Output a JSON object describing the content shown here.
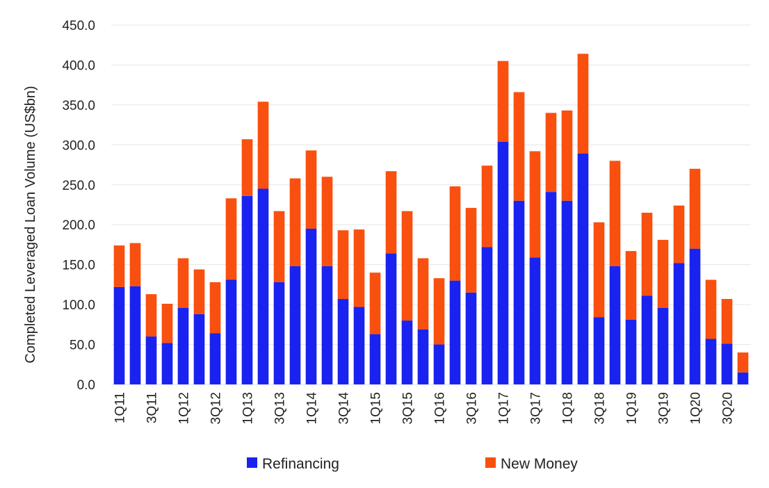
{
  "chart_data": {
    "type": "bar",
    "stacked": true,
    "ylabel": "Completed Leveraged Loan Volume (US$bn)",
    "ylim": [
      0,
      450
    ],
    "yticks": [
      "0.0",
      "50.0",
      "100.0",
      "150.0",
      "200.0",
      "250.0",
      "300.0",
      "350.0",
      "400.0",
      "450.0"
    ],
    "grid": true,
    "legend_position": "bottom",
    "categories": [
      "1Q11",
      "2Q11",
      "3Q11",
      "4Q11",
      "1Q12",
      "2Q12",
      "3Q12",
      "4Q12",
      "1Q13",
      "2Q13",
      "3Q13",
      "4Q13",
      "1Q14",
      "2Q14",
      "3Q14",
      "4Q14",
      "1Q15",
      "2Q15",
      "3Q15",
      "4Q15",
      "1Q16",
      "2Q16",
      "3Q16",
      "4Q16",
      "1Q17",
      "2Q17",
      "3Q17",
      "4Q17",
      "1Q18",
      "2Q18",
      "3Q18",
      "4Q18",
      "1Q19",
      "2Q19",
      "3Q19",
      "4Q19",
      "1Q20",
      "2Q20",
      "3Q20",
      "4Q20"
    ],
    "x_tick_labels": [
      "1Q11",
      "",
      "3Q11",
      "",
      "1Q12",
      "",
      "3Q12",
      "",
      "1Q13",
      "",
      "3Q13",
      "",
      "1Q14",
      "",
      "3Q14",
      "",
      "1Q15",
      "",
      "3Q15",
      "",
      "1Q16",
      "",
      "3Q16",
      "",
      "1Q17",
      "",
      "3Q17",
      "",
      "1Q18",
      "",
      "3Q18",
      "",
      "1Q19",
      "",
      "3Q19",
      "",
      "1Q20",
      "",
      "3Q20",
      ""
    ],
    "series": [
      {
        "name": "Refinancing",
        "color": "#1a22f0",
        "values": [
          122,
          123,
          60,
          52,
          96,
          88,
          64,
          131,
          236,
          245,
          128,
          148,
          195,
          148,
          107,
          97,
          63,
          164,
          80,
          69,
          50,
          130,
          115,
          172,
          304,
          230,
          159,
          241,
          230,
          289,
          84,
          148,
          81,
          111,
          96,
          152,
          170,
          57,
          51,
          15
        ]
      },
      {
        "name": "New Money",
        "color": "#f9500f",
        "values": [
          52,
          54,
          53,
          49,
          62,
          56,
          64,
          102,
          71,
          109,
          89,
          110,
          98,
          112,
          86,
          97,
          77,
          103,
          137,
          89,
          83,
          118,
          106,
          102,
          101,
          136,
          133,
          99,
          113,
          125,
          119,
          132,
          86,
          104,
          85,
          72,
          100,
          74,
          56,
          25
        ]
      }
    ]
  }
}
